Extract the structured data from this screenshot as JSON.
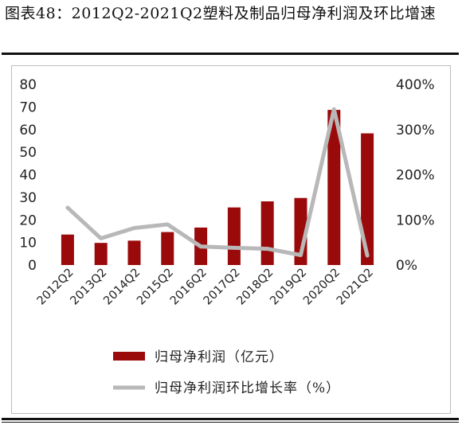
{
  "figure": {
    "title": "图表48：2012Q2-2021Q2塑料及制品归母净利润及环比增速"
  },
  "chart_data": {
    "type": "bar",
    "categories": [
      "2012Q2",
      "2013Q2",
      "2014Q2",
      "2015Q2",
      "2016Q2",
      "2017Q2",
      "2018Q2",
      "2019Q2",
      "2020Q2",
      "2021Q2"
    ],
    "series": [
      {
        "name": "归母净利润（亿元）",
        "type": "bar",
        "axis": "left",
        "color": "#9b0a0a",
        "values": [
          13.5,
          9.8,
          10.8,
          14.6,
          16.6,
          25.5,
          28.2,
          29.7,
          68.7,
          58.3
        ]
      },
      {
        "name": "归母净利润环比增长率（%）",
        "type": "line",
        "axis": "right",
        "color": "#b8b8b8",
        "values": [
          127,
          59,
          82,
          90,
          41,
          38,
          36,
          22,
          345,
          21
        ]
      }
    ],
    "y_left": {
      "min": 0,
      "max": 80,
      "ticks": [
        "0",
        "10",
        "20",
        "30",
        "40",
        "50",
        "60",
        "70",
        "80"
      ]
    },
    "y_right": {
      "min": 0,
      "max": 400,
      "ticks": [
        "0%",
        "100%",
        "200%",
        "300%",
        "400%"
      ]
    },
    "grid": false,
    "legend_position": "bottom"
  }
}
